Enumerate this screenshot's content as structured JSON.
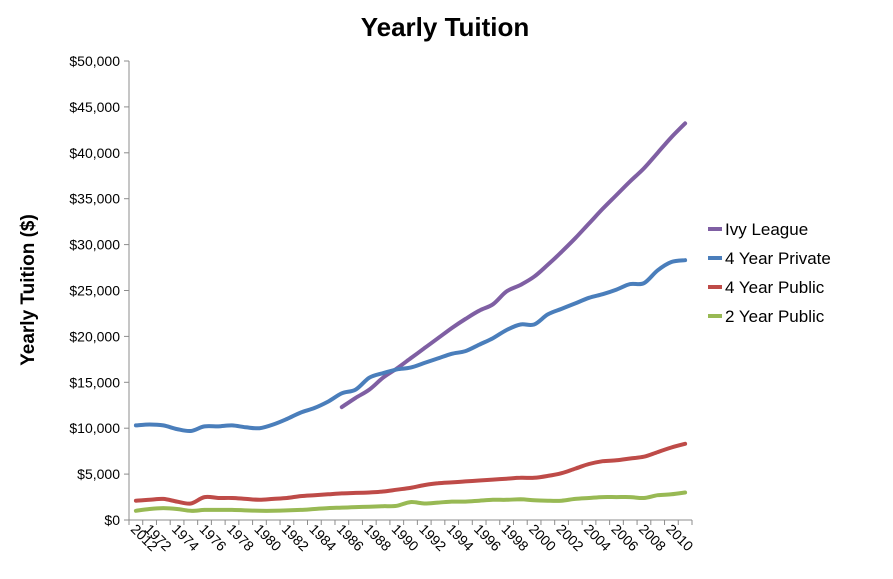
{
  "chart_data": {
    "type": "line",
    "title": "Yearly Tuition",
    "xlabel": "",
    "ylabel": "Yearly Tuition ($)",
    "ylim": [
      0,
      50000
    ],
    "y_ticks": [
      "$0",
      "$5,000",
      "$10,000",
      "$15,000",
      "$20,000",
      "$25,000",
      "$30,000",
      "$35,000",
      "$40,000",
      "$45,000",
      "$50,000"
    ],
    "x_ticks": [
      "1972",
      "1974",
      "1976",
      "1978",
      "1980",
      "1982",
      "1984",
      "1986",
      "1988",
      "1990",
      "1992",
      "1994",
      "1996",
      "1998",
      "2000",
      "2002",
      "2004",
      "2006",
      "2008",
      "2010",
      "2012"
    ],
    "x": [
      1971,
      1972,
      1973,
      1974,
      1975,
      1976,
      1977,
      1978,
      1979,
      1980,
      1981,
      1982,
      1983,
      1984,
      1985,
      1986,
      1987,
      1988,
      1989,
      1990,
      1991,
      1992,
      1993,
      1994,
      1995,
      1996,
      1997,
      1998,
      1999,
      2000,
      2001,
      2002,
      2003,
      2004,
      2005,
      2006,
      2007,
      2008,
      2009,
      2010,
      2011
    ],
    "grid": false,
    "legend_position": "right",
    "series": [
      {
        "name": "Ivy League",
        "color": "#7f5fa3",
        "values": [
          null,
          null,
          null,
          null,
          null,
          null,
          null,
          null,
          null,
          null,
          null,
          null,
          null,
          null,
          null,
          12300,
          13300,
          14200,
          15500,
          16500,
          17600,
          18700,
          19800,
          20900,
          21900,
          22800,
          23500,
          24900,
          25600,
          26500,
          27800,
          29200,
          30700,
          32300,
          33900,
          35400,
          36900,
          38300,
          40000,
          41700,
          43200
        ]
      },
      {
        "name": "4 Year Private",
        "color": "#4a7ebb",
        "values": [
          10300,
          10400,
          10300,
          9900,
          9700,
          10200,
          10200,
          10300,
          10100,
          10000,
          10400,
          11000,
          11700,
          12200,
          12900,
          13800,
          14200,
          15500,
          16000,
          16400,
          16600,
          17100,
          17600,
          18100,
          18400,
          19100,
          19800,
          20700,
          21300,
          21300,
          22400,
          23000,
          23600,
          24200,
          24600,
          25100,
          25700,
          25800,
          27200,
          28100,
          28300
        ]
      },
      {
        "name": "4 Year Public",
        "color": "#be4b48",
        "values": [
          2100,
          2200,
          2300,
          2000,
          1800,
          2500,
          2400,
          2400,
          2300,
          2200,
          2300,
          2400,
          2600,
          2700,
          2800,
          2900,
          2950,
          3000,
          3100,
          3300,
          3500,
          3800,
          4000,
          4100,
          4200,
          4300,
          4400,
          4500,
          4600,
          4600,
          4800,
          5100,
          5600,
          6100,
          6400,
          6500,
          6700,
          6900,
          7400,
          7900,
          8300
        ]
      },
      {
        "name": "2 Year Public",
        "color": "#98b954",
        "values": [
          1000,
          1200,
          1300,
          1200,
          1000,
          1100,
          1100,
          1100,
          1050,
          1000,
          1000,
          1050,
          1100,
          1200,
          1300,
          1350,
          1400,
          1450,
          1500,
          1550,
          1950,
          1800,
          1900,
          2000,
          2000,
          2100,
          2200,
          2200,
          2250,
          2150,
          2100,
          2100,
          2300,
          2400,
          2500,
          2500,
          2500,
          2400,
          2700,
          2800,
          3000
        ]
      }
    ]
  }
}
